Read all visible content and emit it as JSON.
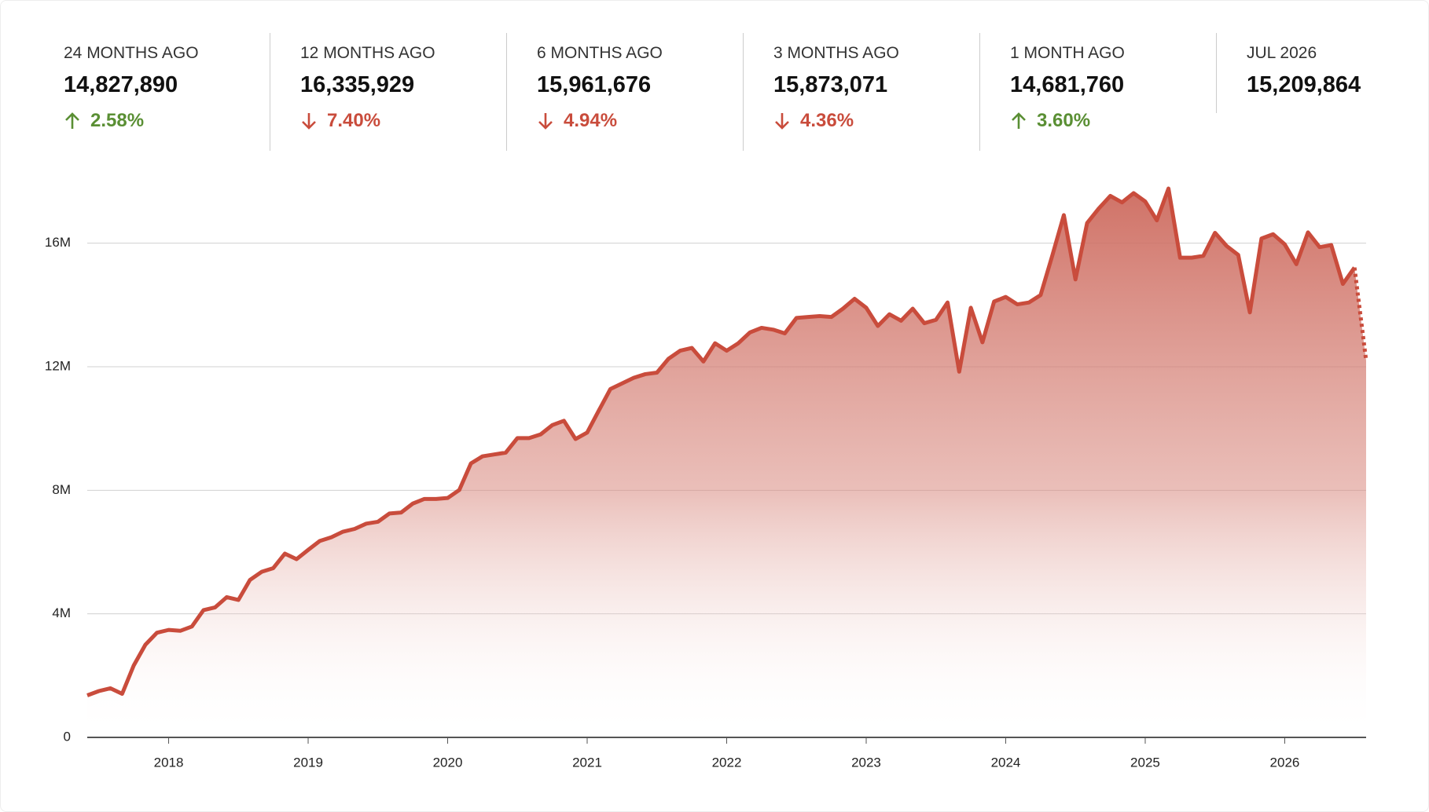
{
  "stats": [
    {
      "label": "24 MONTHS AGO",
      "value": "14,827,890",
      "change": {
        "direction": "up",
        "text": "2.58%"
      }
    },
    {
      "label": "12 MONTHS AGO",
      "value": "16,335,929",
      "change": {
        "direction": "down",
        "text": "7.40%"
      }
    },
    {
      "label": "6 MONTHS AGO",
      "value": "15,961,676",
      "change": {
        "direction": "down",
        "text": "4.94%"
      }
    },
    {
      "label": "3 MONTHS AGO",
      "value": "15,873,071",
      "change": {
        "direction": "down",
        "text": "4.36%"
      }
    },
    {
      "label": "1 MONTH AGO",
      "value": "14,681,760",
      "change": {
        "direction": "up",
        "text": "3.60%"
      }
    },
    {
      "label": "JUL 2026",
      "value": "15,209,864"
    }
  ],
  "chart_data": {
    "type": "area",
    "categories": [
      null,
      null,
      null,
      null,
      null,
      null,
      null,
      "2018",
      null,
      null,
      null,
      null,
      null,
      null,
      null,
      null,
      null,
      null,
      null,
      "2019",
      null,
      null,
      null,
      null,
      null,
      null,
      null,
      null,
      null,
      null,
      null,
      "2020",
      null,
      null,
      null,
      null,
      null,
      null,
      null,
      null,
      null,
      null,
      null,
      "2021",
      null,
      null,
      null,
      null,
      null,
      null,
      null,
      null,
      null,
      null,
      null,
      "2022",
      null,
      null,
      null,
      null,
      null,
      null,
      null,
      null,
      null,
      null,
      null,
      "2023",
      null,
      null,
      null,
      null,
      null,
      null,
      null,
      null,
      null,
      null,
      null,
      "2024",
      null,
      null,
      null,
      null,
      null,
      null,
      null,
      null,
      null,
      null,
      null,
      "2025",
      null,
      null,
      null,
      null,
      null,
      null,
      null,
      null,
      null,
      null,
      null,
      "2026",
      null,
      null,
      null,
      null,
      null,
      null,
      null
    ],
    "series": [
      {
        "color": "#c94c3c",
        "dashed_from": 109,
        "values": [
          1360000,
          1500000,
          1590000,
          1410000,
          2330000,
          3000000,
          3390000,
          3480000,
          3450000,
          3590000,
          4120000,
          4210000,
          4540000,
          4450000,
          5100000,
          5360000,
          5480000,
          5950000,
          5770000,
          6070000,
          6360000,
          6480000,
          6660000,
          6750000,
          6920000,
          6980000,
          7250000,
          7280000,
          7570000,
          7720000,
          7720000,
          7750000,
          8010000,
          8870000,
          9100000,
          9160000,
          9220000,
          9690000,
          9690000,
          9810000,
          10110000,
          10250000,
          9660000,
          9870000,
          10580000,
          11280000,
          11460000,
          11640000,
          11760000,
          11810000,
          12260000,
          12520000,
          12610000,
          12170000,
          12760000,
          12520000,
          12760000,
          13110000,
          13260000,
          13200000,
          13080000,
          13580000,
          13610000,
          13640000,
          13610000,
          13880000,
          14200000,
          13910000,
          13320000,
          13700000,
          13490000,
          13880000,
          13410000,
          13520000,
          14080000,
          11840000,
          13910000,
          12790000,
          14110000,
          14260000,
          14020000,
          14080000,
          14320000,
          15590000,
          16910000,
          14827890,
          16650000,
          17120000,
          17530000,
          17320000,
          17620000,
          17350000,
          16740000,
          17770000,
          15530000,
          15530000,
          15590000,
          16335929,
          15910000,
          15620000,
          13760000,
          16150000,
          16290000,
          15961676,
          15320000,
          16350000,
          15873071,
          15940000,
          14681760,
          15209864,
          12200000
        ]
      }
    ],
    "ylim": [
      0,
      18000000
    ],
    "yticks": [
      0,
      {
        "value": 4000000,
        "label": "4M"
      },
      {
        "value": 8000000,
        "label": "8M"
      },
      {
        "value": 12000000,
        "label": "12M"
      },
      {
        "value": 16000000,
        "label": "16M"
      }
    ],
    "grid": true
  }
}
